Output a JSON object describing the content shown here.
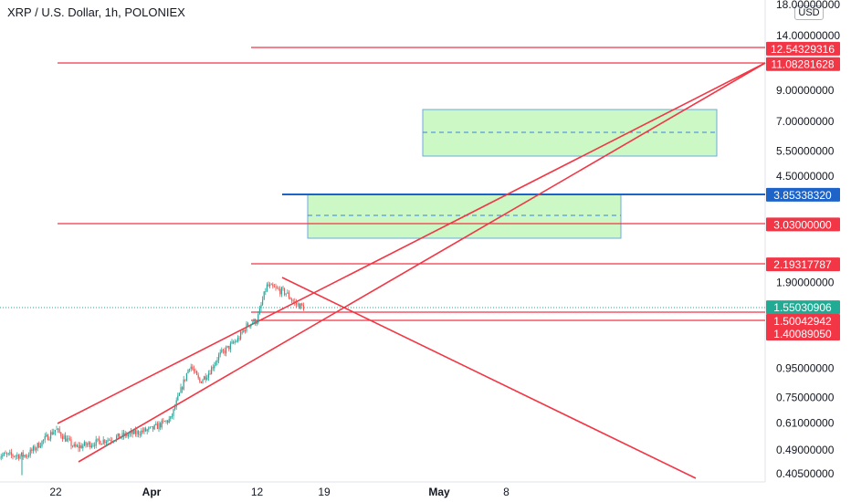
{
  "header": {
    "title": "XRP / U.S. Dollar, 1h, POLONIEX",
    "currency": "USD"
  },
  "chart_data": {
    "type": "line",
    "title": "XRP / U.S. Dollar, 1h, POLONIEX",
    "scale": "log",
    "y_unit": "USD",
    "ylim": [
      0.39,
      18.0
    ],
    "x_ticks": [
      "22",
      "Apr",
      "12",
      "19",
      "May",
      "8"
    ],
    "y_ticks": [
      {
        "value": 18.0,
        "label": "18.00000000"
      },
      {
        "value": 14.0,
        "label": "14.00000000"
      },
      {
        "value": 9.0,
        "label": "9.00000000"
      },
      {
        "value": 7.0,
        "label": "7.00000000"
      },
      {
        "value": 5.5,
        "label": "5.50000000"
      },
      {
        "value": 4.5,
        "label": "4.50000000"
      },
      {
        "value": 1.9,
        "label": "1.90000000"
      },
      {
        "value": 0.95,
        "label": "0.95000000"
      },
      {
        "value": 0.75,
        "label": "0.75000000"
      },
      {
        "value": 0.61,
        "label": "0.61000000"
      },
      {
        "value": 0.49,
        "label": "0.49000000"
      },
      {
        "value": 0.405,
        "label": "0.40500000"
      }
    ],
    "price_tags": [
      {
        "label": "12.54329316",
        "value": 12.54329316,
        "color": "#f23645"
      },
      {
        "label": "11.08281628",
        "value": 11.08281628,
        "color": "#f23645"
      },
      {
        "label": "3.85338320",
        "value": 3.8533832,
        "color": "#1e63c8"
      },
      {
        "label": "3.03000000",
        "value": 3.03,
        "color": "#f23645"
      },
      {
        "label": "2.19317787",
        "value": 2.19317787,
        "color": "#f23645"
      },
      {
        "label": "1.55030906",
        "value": 1.55030906,
        "color": "#22ab94"
      },
      {
        "label": "1.50042942",
        "value": 1.50042942,
        "color": "#f23645"
      },
      {
        "label": "1.40089050",
        "value": 1.4008905,
        "color": "#f23645"
      }
    ],
    "series": [
      {
        "x": [
          "2021-03-16",
          "2021-03-19",
          "2021-03-22",
          "2021-03-24",
          "2021-03-27",
          "2021-03-30",
          "2021-04-01",
          "2021-04-03",
          "2021-04-05",
          "2021-04-06",
          "2021-04-07",
          "2021-04-08",
          "2021-04-10",
          "2021-04-11",
          "2021-04-12",
          "2021-04-13",
          "2021-04-14",
          "2021-04-15",
          "2021-04-16",
          "2021-04-17"
        ],
        "values": [
          0.47,
          0.47,
          0.58,
          0.5,
          0.53,
          0.56,
          0.58,
          0.63,
          0.98,
          0.85,
          0.92,
          1.05,
          1.2,
          1.35,
          1.4,
          1.85,
          1.8,
          1.75,
          1.6,
          1.55
        ]
      }
    ]
  }
}
